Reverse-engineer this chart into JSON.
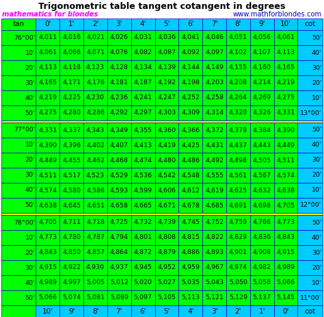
{
  "title": "Trigonometric table tangent cotangent in degrees",
  "subtitle_left": "mathematics for blondes",
  "subtitle_right": "www.mathforblondes.com",
  "title_color": "#000000",
  "subtitle_left_color": "#ff00ff",
  "subtitle_right_color": "#0000cc",
  "header_row": [
    "tan",
    "0'",
    "1'",
    "2'",
    "3'",
    "4'",
    "5'",
    "6'",
    "7'",
    "8'",
    "9'",
    "10'",
    "cot"
  ],
  "footer_row": [
    "",
    "10'",
    "9'",
    "8'",
    "7'",
    "6'",
    "5'",
    "4'",
    "3'",
    "2'",
    "1'",
    "0'",
    "cot"
  ],
  "sections": [
    {
      "rows": [
        [
          "76°00'",
          "4,011",
          "4,016",
          "4,021",
          "4,026",
          "4,031",
          "4,036",
          "4,041",
          "4,046",
          "4,051",
          "4,056",
          "4,061",
          "50'"
        ],
        [
          "10'",
          "4,061",
          "4,066",
          "4,071",
          "4,076",
          "4,082",
          "4,087",
          "4,092",
          "4,097",
          "4,102",
          "4,107",
          "4,113",
          "40'"
        ],
        [
          "20'",
          "4,113",
          "4,118",
          "4,123",
          "4,128",
          "4,134",
          "4,139",
          "4,144",
          "4,149",
          "4,155",
          "4,160",
          "4,165",
          "30'"
        ],
        [
          "30'",
          "4,165",
          "4,171",
          "4,176",
          "4,181",
          "4,187",
          "4,192",
          "4,198",
          "4,203",
          "4,208",
          "4,214",
          "4,219",
          "20'"
        ],
        [
          "40'",
          "4,219",
          "4,225",
          "4,230",
          "4,236",
          "4,241",
          "4,247",
          "4,252",
          "4,258",
          "4,264",
          "4,269",
          "4,275",
          "10'"
        ],
        [
          "50'",
          "4,275",
          "4,280",
          "4,286",
          "4,292",
          "4,297",
          "4,303",
          "4,309",
          "4,314",
          "4,320",
          "4,326",
          "4,331",
          "13°00'"
        ]
      ]
    },
    {
      "rows": [
        [
          "77°00'",
          "4,331",
          "4,337",
          "4,343",
          "4,349",
          "4,355",
          "4,360",
          "4,366",
          "4,372",
          "4,378",
          "4,384",
          "4,390",
          "50'"
        ],
        [
          "10'",
          "4,390",
          "4,396",
          "4,402",
          "4,407",
          "4,413",
          "4,419",
          "4,425",
          "4,431",
          "4,437",
          "4,443",
          "4,449",
          "40'"
        ],
        [
          "20'",
          "4,449",
          "4,455",
          "4,462",
          "4,468",
          "4,474",
          "4,480",
          "4,486",
          "4,492",
          "4,498",
          "4,505",
          "4,511",
          "30'"
        ],
        [
          "30'",
          "4,511",
          "4,517",
          "4,523",
          "4,529",
          "4,536",
          "4,542",
          "4,548",
          "4,555",
          "4,561",
          "4,567",
          "4,574",
          "20'"
        ],
        [
          "40'",
          "4,574",
          "4,580",
          "4,586",
          "4,593",
          "4,599",
          "4,606",
          "4,612",
          "4,619",
          "4,625",
          "4,632",
          "4,638",
          "10'"
        ],
        [
          "50'",
          "4,638",
          "4,645",
          "4,651",
          "4,658",
          "4,665",
          "4,671",
          "4,678",
          "4,685",
          "4,691",
          "4,698",
          "4,705",
          "12°00'"
        ]
      ]
    },
    {
      "rows": [
        [
          "78°00'",
          "4,705",
          "4,711",
          "4,718",
          "4,725",
          "4,732",
          "4,739",
          "4,745",
          "4,752",
          "4,759",
          "4,766",
          "4,773",
          "50'"
        ],
        [
          "10'",
          "4,773",
          "4,780",
          "4,787",
          "4,794",
          "4,801",
          "4,808",
          "4,815",
          "4,822",
          "4,829",
          "4,836",
          "4,843",
          "40'"
        ],
        [
          "20'",
          "4,843",
          "4,850",
          "4,857",
          "4,864",
          "4,872",
          "4,879",
          "4,886",
          "4,893",
          "4,901",
          "4,908",
          "4,915",
          "30'"
        ],
        [
          "30'",
          "4,915",
          "4,922",
          "4,930",
          "4,937",
          "4,945",
          "4,952",
          "4,959",
          "4,967",
          "4,974",
          "4,982",
          "4,989",
          "20'"
        ],
        [
          "40'",
          "4,989",
          "4,997",
          "5,005",
          "5,012",
          "5,020",
          "5,027",
          "5,035",
          "5,043",
          "5,050",
          "5,058",
          "5,066",
          "10'"
        ],
        [
          "50'",
          "5,066",
          "5,074",
          "5,081",
          "5,089",
          "5,097",
          "5,105",
          "5,113",
          "5,121",
          "5,129",
          "5,137",
          "5,145",
          "11°00'"
        ]
      ]
    }
  ],
  "green": "#00ff00",
  "cyan": "#00ccff",
  "yellow": "#ffff00",
  "white": "#ffffff",
  "black": "#000000",
  "border": "#0000cc",
  "figsize": [
    4.74,
    4.63
  ],
  "dpi": 100
}
